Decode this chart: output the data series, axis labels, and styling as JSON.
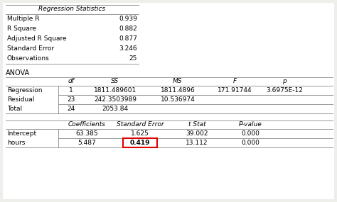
{
  "bg_color": "#eeeeea",
  "white_bg": "#ffffff",
  "reg_stats_title": "Regression Statistics",
  "reg_stats_rows": [
    [
      "Multiple R",
      "0.939"
    ],
    [
      "R Square",
      "0.882"
    ],
    [
      "Adjusted R Square",
      "0.877"
    ],
    [
      "Standard Error",
      "3.246"
    ],
    [
      "Observations",
      "25"
    ]
  ],
  "anova_title": "ANOVA",
  "anova_headers": [
    "",
    "df",
    "SS",
    "MS",
    "F",
    "p"
  ],
  "anova_rows": [
    [
      "Regression",
      "1",
      "1811.489601",
      "1811.4896",
      "171.91744",
      "3.6975E-12"
    ],
    [
      "Residual",
      "23",
      "242.3503989",
      "10.536974",
      "",
      ""
    ],
    [
      "Total",
      "24",
      "2053.84",
      "",
      "",
      ""
    ]
  ],
  "coef_headers": [
    "",
    "Coefficients",
    "Standard Error",
    "t Stat",
    "P-value",
    ""
  ],
  "coef_rows": [
    [
      "Intercept",
      "63.385",
      "1.625",
      "39.002",
      "0.000",
      ""
    ],
    [
      "hours",
      "5.487",
      "0.419",
      "13.112",
      "0.000",
      ""
    ]
  ],
  "highlight_cell": [
    1,
    2
  ],
  "highlight_color": "#dd0000",
  "fontsize": 6.5,
  "line_color": "#888888",
  "line_lw": 0.6
}
